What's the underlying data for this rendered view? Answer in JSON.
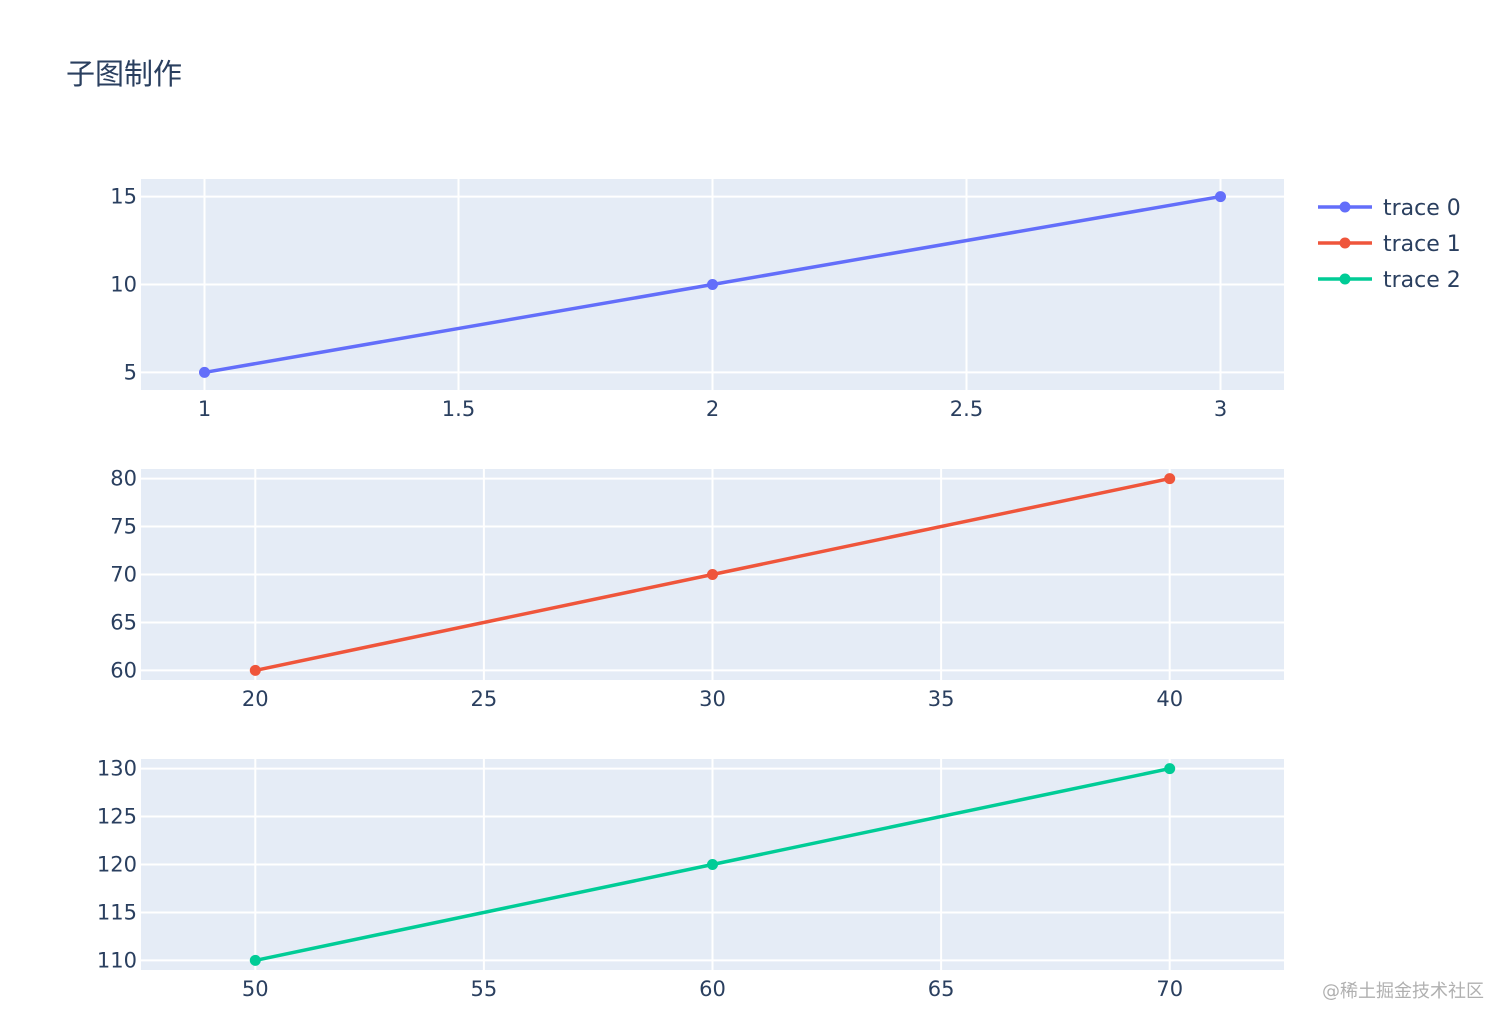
{
  "chart_data": {
    "type": "line",
    "title": "子图制作",
    "grid": true,
    "legend_placement": "top-right",
    "subplots": [
      {
        "series": [
          {
            "name": "trace 0",
            "color": "#636efa",
            "x": [
              1,
              2,
              3
            ],
            "y": [
              5,
              10,
              15
            ]
          }
        ],
        "xlim": [
          0.875,
          3.125
        ],
        "ylim": [
          4,
          16
        ],
        "xticks": [
          1,
          1.5,
          2,
          2.5,
          3
        ],
        "xtick_labels": [
          "1",
          "1.5",
          "2",
          "2.5",
          "3"
        ],
        "yticks": [
          5,
          10,
          15
        ],
        "ytick_labels": [
          "5",
          "10",
          "15"
        ]
      },
      {
        "series": [
          {
            "name": "trace 1",
            "color": "#ef553b",
            "x": [
              20,
              30,
              40
            ],
            "y": [
              60,
              70,
              80
            ]
          }
        ],
        "xlim": [
          17.5,
          42.5
        ],
        "ylim": [
          59,
          81
        ],
        "xticks": [
          20,
          25,
          30,
          35,
          40
        ],
        "xtick_labels": [
          "20",
          "25",
          "30",
          "35",
          "40"
        ],
        "yticks": [
          60,
          65,
          70,
          75,
          80
        ],
        "ytick_labels": [
          "60",
          "65",
          "70",
          "75",
          "80"
        ]
      },
      {
        "series": [
          {
            "name": "trace 2",
            "color": "#00cc96",
            "x": [
              50,
              60,
              70
            ],
            "y": [
              110,
              120,
              130
            ]
          }
        ],
        "xlim": [
          47.5,
          72.5
        ],
        "ylim": [
          109,
          131
        ],
        "xticks": [
          50,
          55,
          60,
          65,
          70
        ],
        "xtick_labels": [
          "50",
          "55",
          "60",
          "65",
          "70"
        ],
        "yticks": [
          110,
          115,
          120,
          125,
          130
        ],
        "ytick_labels": [
          "110",
          "115",
          "120",
          "125",
          "130"
        ]
      }
    ],
    "legend": [
      {
        "name": "trace 0",
        "color": "#636efa"
      },
      {
        "name": "trace 1",
        "color": "#ef553b"
      },
      {
        "name": "trace 2",
        "color": "#00cc96"
      }
    ]
  },
  "watermark": "@稀土掘金技术社区"
}
